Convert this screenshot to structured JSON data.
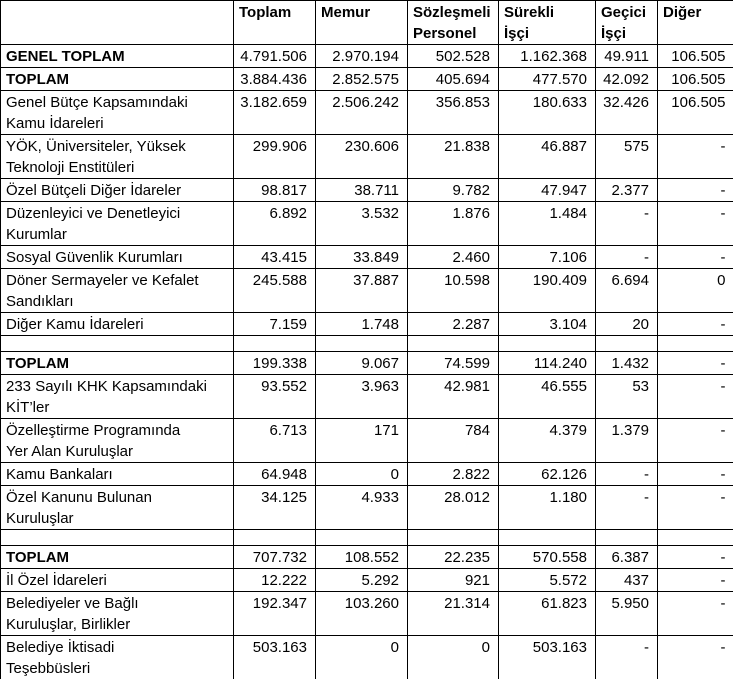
{
  "table": {
    "background": "#ffffff",
    "text_color": "#000000",
    "border_color": "#000000",
    "columns": [
      "",
      "Toplam",
      "Memur",
      "Sözleşmeli\nPersonel",
      "Sürekli\nİşçi",
      "Geçici\nİşçi",
      "Diğer"
    ],
    "rows": [
      {
        "type": "data",
        "bold": true,
        "label": "GENEL TOPLAM",
        "values": [
          "4.791.506",
          "2.970.194",
          "502.528",
          "1.162.368",
          "49.911",
          "106.505"
        ]
      },
      {
        "type": "data",
        "bold": true,
        "label": "TOPLAM",
        "values": [
          "3.884.436",
          "2.852.575",
          "405.694",
          "477.570",
          "42.092",
          "106.505"
        ]
      },
      {
        "type": "data",
        "bold": false,
        "label": "Genel Bütçe Kapsamındaki\nKamu İdareleri",
        "values": [
          "3.182.659",
          "2.506.242",
          "356.853",
          "180.633",
          "32.426",
          "106.505"
        ]
      },
      {
        "type": "data",
        "bold": false,
        "label": "YÖK, Üniversiteler, Yüksek\nTeknoloji Enstitüleri",
        "values": [
          "299.906",
          "230.606",
          "21.838",
          "46.887",
          "575",
          "-"
        ]
      },
      {
        "type": "data",
        "bold": false,
        "label": "Özel Bütçeli Diğer İdareler",
        "values": [
          "98.817",
          "38.711",
          "9.782",
          "47.947",
          "2.377",
          "-"
        ]
      },
      {
        "type": "data",
        "bold": false,
        "label": "Düzenleyici ve Denetleyici\nKurumlar",
        "values": [
          "6.892",
          "3.532",
          "1.876",
          "1.484",
          "-",
          "-"
        ]
      },
      {
        "type": "data",
        "bold": false,
        "label": "Sosyal Güvenlik Kurumları",
        "values": [
          "43.415",
          "33.849",
          "2.460",
          "7.106",
          "-",
          "-"
        ]
      },
      {
        "type": "data",
        "bold": false,
        "label": "Döner Sermayeler ve Kefalet\nSandıkları",
        "values": [
          "245.588",
          "37.887",
          "10.598",
          "190.409",
          "6.694",
          "0"
        ]
      },
      {
        "type": "data",
        "bold": false,
        "label": "Diğer Kamu İdareleri",
        "values": [
          "7.159",
          "1.748",
          "2.287",
          "3.104",
          "20",
          "-"
        ]
      },
      {
        "type": "spacer"
      },
      {
        "type": "data",
        "bold": true,
        "label": "TOPLAM",
        "values": [
          "199.338",
          "9.067",
          "74.599",
          "114.240",
          "1.432",
          "-"
        ]
      },
      {
        "type": "data",
        "bold": false,
        "label": "233 Sayılı KHK Kapsamındaki\nKİT’ler",
        "values": [
          "93.552",
          "3.963",
          "42.981",
          "46.555",
          "53",
          "-"
        ]
      },
      {
        "type": "data",
        "bold": false,
        "label": "Özelleştirme Programında\nYer Alan Kuruluşlar",
        "values": [
          "6.713",
          "171",
          "784",
          "4.379",
          "1.379",
          "-"
        ]
      },
      {
        "type": "data",
        "bold": false,
        "label": "Kamu Bankaları",
        "values": [
          "64.948",
          "0",
          "2.822",
          "62.126",
          "-",
          "-"
        ]
      },
      {
        "type": "data",
        "bold": false,
        "label": "Özel Kanunu Bulunan\nKuruluşlar",
        "values": [
          "34.125",
          "4.933",
          "28.012",
          "1.180",
          "-",
          "-"
        ]
      },
      {
        "type": "spacer"
      },
      {
        "type": "data",
        "bold": true,
        "label": "TOPLAM",
        "values": [
          "707.732",
          "108.552",
          "22.235",
          "570.558",
          "6.387",
          "-"
        ]
      },
      {
        "type": "data",
        "bold": false,
        "label": "İl Özel İdareleri",
        "values": [
          "12.222",
          "5.292",
          "921",
          "5.572",
          "437",
          "-"
        ]
      },
      {
        "type": "data",
        "bold": false,
        "label": "Belediyeler ve Bağlı\nKuruluşlar, Birlikler",
        "values": [
          "192.347",
          "103.260",
          "21.314",
          "61.823",
          "5.950",
          "-"
        ]
      },
      {
        "type": "data",
        "bold": false,
        "label": "Belediye İktisadi\nTeşebbüsleri",
        "values": [
          "503.163",
          "0",
          "0",
          "503.163",
          "-",
          "-"
        ]
      }
    ]
  }
}
